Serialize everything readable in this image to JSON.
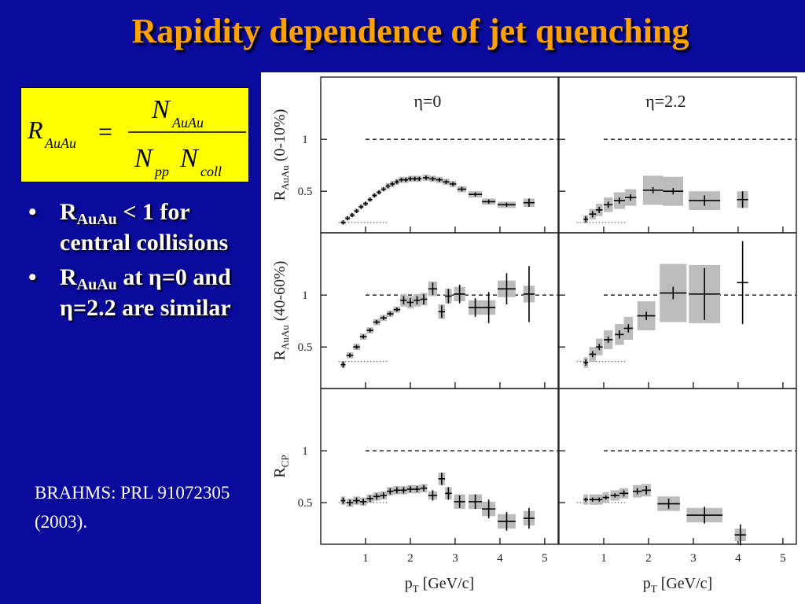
{
  "slide": {
    "title": "Rapidity dependence of jet quenching",
    "formula": {
      "lhs": "R",
      "lhs_sub": "AuAu",
      "equals": "=",
      "num": "N",
      "num_sub": "AuAu",
      "den1": "N",
      "den1_sub": "pp",
      "den2": "N",
      "den2_sub": "coll"
    },
    "bullets": [
      {
        "dot": "•",
        "part1": "R",
        "sub": "AuAu",
        "part2": " < 1 for central collisions"
      },
      {
        "dot": "•",
        "part1": "R",
        "sub": "AuAu",
        "part2": " at η=0 and  η=2.2 are similar"
      }
    ],
    "citation": "BRAHMS: PRL 91072305 (2003)."
  },
  "colors": {
    "background": "#0a0a9c",
    "title": "#ffa200",
    "formula_box": "#ffff00",
    "band": "#bcbcbc"
  },
  "chart_data": {
    "type": "scatter",
    "columns": [
      "η=0",
      "η=2.2"
    ],
    "xlabel": "pT [GeV/c]",
    "xticks": [
      "1",
      "2",
      "3",
      "4",
      "5"
    ],
    "xlim": [
      0,
      5.3
    ],
    "rows": [
      {
        "ylabel": "R",
        "ylabel_sub": "AuAu",
        "ylabel_extra": "(0-10%)",
        "yticks": [
          "1",
          "0.5"
        ],
        "ylim": [
          0.1,
          1.6
        ]
      },
      {
        "ylabel": "R",
        "ylabel_sub": "AuAu",
        "ylabel_extra": "(40-60%)",
        "yticks": [
          "1",
          "0.5"
        ],
        "ylim": [
          0.1,
          1.6
        ]
      },
      {
        "ylabel": "R",
        "ylabel_sub": "CP",
        "ylabel_extra": "",
        "yticks": [
          "1",
          "0.5"
        ],
        "ylim": [
          0.1,
          1.6
        ]
      }
    ],
    "reference_line": 1.0,
    "panels": [
      {
        "row": 0,
        "col": 0,
        "points": [
          {
            "x": 0.5,
            "y": 0.2,
            "band": 0.02,
            "err": 0.02
          },
          {
            "x": 0.6,
            "y": 0.24,
            "band": 0.02,
            "err": 0.02
          },
          {
            "x": 0.7,
            "y": 0.27,
            "band": 0.02,
            "err": 0.02
          },
          {
            "x": 0.8,
            "y": 0.31,
            "band": 0.02,
            "err": 0.02
          },
          {
            "x": 0.9,
            "y": 0.35,
            "band": 0.02,
            "err": 0.02
          },
          {
            "x": 1.0,
            "y": 0.38,
            "band": 0.02,
            "err": 0.02
          },
          {
            "x": 1.1,
            "y": 0.42,
            "band": 0.02,
            "err": 0.02
          },
          {
            "x": 1.2,
            "y": 0.46,
            "band": 0.02,
            "err": 0.02
          },
          {
            "x": 1.3,
            "y": 0.49,
            "band": 0.02,
            "err": 0.02
          },
          {
            "x": 1.4,
            "y": 0.52,
            "band": 0.02,
            "err": 0.02
          },
          {
            "x": 1.5,
            "y": 0.55,
            "band": 0.03,
            "err": 0.02
          },
          {
            "x": 1.6,
            "y": 0.57,
            "band": 0.03,
            "err": 0.02
          },
          {
            "x": 1.7,
            "y": 0.59,
            "band": 0.03,
            "err": 0.02
          },
          {
            "x": 1.8,
            "y": 0.61,
            "band": 0.03,
            "err": 0.02
          },
          {
            "x": 1.9,
            "y": 0.61,
            "band": 0.03,
            "err": 0.02
          },
          {
            "x": 2.0,
            "y": 0.62,
            "band": 0.03,
            "err": 0.02
          },
          {
            "x": 2.1,
            "y": 0.62,
            "band": 0.03,
            "err": 0.02
          },
          {
            "x": 2.2,
            "y": 0.62,
            "band": 0.03,
            "err": 0.02
          },
          {
            "x": 2.35,
            "y": 0.63,
            "band": 0.03,
            "err": 0.02
          },
          {
            "x": 2.5,
            "y": 0.62,
            "band": 0.03,
            "err": 0.02
          },
          {
            "x": 2.65,
            "y": 0.61,
            "band": 0.03,
            "err": 0.02
          },
          {
            "x": 2.8,
            "y": 0.59,
            "band": 0.03,
            "err": 0.02
          },
          {
            "x": 2.95,
            "y": 0.57,
            "band": 0.03,
            "err": 0.02
          },
          {
            "x": 3.15,
            "y": 0.52,
            "band": 0.03,
            "err": 0.02
          },
          {
            "x": 3.45,
            "y": 0.47,
            "band": 0.03,
            "err": 0.02
          },
          {
            "x": 3.75,
            "y": 0.4,
            "band": 0.03,
            "err": 0.02
          },
          {
            "x": 4.15,
            "y": 0.37,
            "band": 0.03,
            "err": 0.02
          },
          {
            "x": 4.65,
            "y": 0.39,
            "band": 0.04,
            "err": 0.04
          }
        ]
      },
      {
        "row": 0,
        "col": 1,
        "points": [
          {
            "x": 0.6,
            "y": 0.23,
            "band": 0.04,
            "err": 0.03
          },
          {
            "x": 0.75,
            "y": 0.28,
            "band": 0.05,
            "err": 0.03
          },
          {
            "x": 0.9,
            "y": 0.32,
            "band": 0.06,
            "err": 0.03
          },
          {
            "x": 1.1,
            "y": 0.37,
            "band": 0.07,
            "err": 0.03
          },
          {
            "x": 1.35,
            "y": 0.41,
            "band": 0.08,
            "err": 0.03
          },
          {
            "x": 1.6,
            "y": 0.44,
            "band": 0.08,
            "err": 0.03
          },
          {
            "x": 2.1,
            "y": 0.51,
            "band": 0.14,
            "err": 0.03
          },
          {
            "x": 2.55,
            "y": 0.5,
            "band": 0.14,
            "err": 0.03
          },
          {
            "x": 3.25,
            "y": 0.41,
            "band": 0.09,
            "err": 0.05
          },
          {
            "x": 4.1,
            "y": 0.42,
            "band": 0.08,
            "err": 0.08
          }
        ]
      },
      {
        "row": 1,
        "col": 0,
        "points": [
          {
            "x": 0.5,
            "y": 0.33,
            "band": 0.03,
            "err": 0.03
          },
          {
            "x": 0.65,
            "y": 0.42,
            "band": 0.03,
            "err": 0.02
          },
          {
            "x": 0.8,
            "y": 0.5,
            "band": 0.03,
            "err": 0.02
          },
          {
            "x": 0.95,
            "y": 0.6,
            "band": 0.03,
            "err": 0.02
          },
          {
            "x": 1.1,
            "y": 0.66,
            "band": 0.03,
            "err": 0.02
          },
          {
            "x": 1.25,
            "y": 0.74,
            "band": 0.03,
            "err": 0.02
          },
          {
            "x": 1.4,
            "y": 0.78,
            "band": 0.03,
            "err": 0.02
          },
          {
            "x": 1.55,
            "y": 0.82,
            "band": 0.03,
            "err": 0.02
          },
          {
            "x": 1.7,
            "y": 0.86,
            "band": 0.03,
            "err": 0.02
          },
          {
            "x": 1.85,
            "y": 0.95,
            "band": 0.06,
            "err": 0.04
          },
          {
            "x": 2.0,
            "y": 0.93,
            "band": 0.06,
            "err": 0.04
          },
          {
            "x": 2.15,
            "y": 0.95,
            "band": 0.06,
            "err": 0.04
          },
          {
            "x": 2.3,
            "y": 0.96,
            "band": 0.06,
            "err": 0.05
          },
          {
            "x": 2.5,
            "y": 1.06,
            "band": 0.07,
            "err": 0.06
          },
          {
            "x": 2.7,
            "y": 0.84,
            "band": 0.07,
            "err": 0.06
          },
          {
            "x": 2.85,
            "y": 0.99,
            "band": 0.07,
            "err": 0.07
          },
          {
            "x": 3.1,
            "y": 1.01,
            "band": 0.07,
            "err": 0.09
          },
          {
            "x": 3.45,
            "y": 0.88,
            "band": 0.07,
            "err": 0.09
          },
          {
            "x": 3.75,
            "y": 0.88,
            "band": 0.07,
            "err": 0.15
          },
          {
            "x": 4.15,
            "y": 1.06,
            "band": 0.08,
            "err": 0.15
          },
          {
            "x": 4.65,
            "y": 1.01,
            "band": 0.08,
            "err": 0.27
          }
        ]
      },
      {
        "row": 1,
        "col": 1,
        "points": [
          {
            "x": 0.6,
            "y": 0.35,
            "band": 0.05,
            "err": 0.03
          },
          {
            "x": 0.75,
            "y": 0.43,
            "band": 0.07,
            "err": 0.03
          },
          {
            "x": 0.9,
            "y": 0.5,
            "band": 0.08,
            "err": 0.03
          },
          {
            "x": 1.1,
            "y": 0.57,
            "band": 0.09,
            "err": 0.03
          },
          {
            "x": 1.35,
            "y": 0.62,
            "band": 0.1,
            "err": 0.04
          },
          {
            "x": 1.55,
            "y": 0.68,
            "band": 0.11,
            "err": 0.04
          },
          {
            "x": 1.95,
            "y": 0.8,
            "band": 0.14,
            "err": 0.04
          },
          {
            "x": 2.55,
            "y": 1.02,
            "band": 0.28,
            "err": 0.06
          },
          {
            "x": 3.25,
            "y": 1.01,
            "band": 0.28,
            "err": 0.25
          },
          {
            "x": 4.1,
            "y": 1.12,
            "band": 0.0,
            "err": 0.4
          }
        ]
      },
      {
        "row": 2,
        "col": 0,
        "points": [
          {
            "x": 0.5,
            "y": 0.52,
            "band": 0.04,
            "err": 0.03
          },
          {
            "x": 0.65,
            "y": 0.5,
            "band": 0.04,
            "err": 0.03
          },
          {
            "x": 0.8,
            "y": 0.52,
            "band": 0.04,
            "err": 0.03
          },
          {
            "x": 0.95,
            "y": 0.51,
            "band": 0.04,
            "err": 0.03
          },
          {
            "x": 1.1,
            "y": 0.54,
            "band": 0.04,
            "err": 0.03
          },
          {
            "x": 1.25,
            "y": 0.56,
            "band": 0.04,
            "err": 0.03
          },
          {
            "x": 1.4,
            "y": 0.57,
            "band": 0.04,
            "err": 0.03
          },
          {
            "x": 1.55,
            "y": 0.61,
            "band": 0.04,
            "err": 0.03
          },
          {
            "x": 1.7,
            "y": 0.62,
            "band": 0.04,
            "err": 0.03
          },
          {
            "x": 1.85,
            "y": 0.62,
            "band": 0.04,
            "err": 0.03
          },
          {
            "x": 2.0,
            "y": 0.63,
            "band": 0.04,
            "err": 0.03
          },
          {
            "x": 2.15,
            "y": 0.63,
            "band": 0.04,
            "err": 0.03
          },
          {
            "x": 2.3,
            "y": 0.64,
            "band": 0.04,
            "err": 0.03
          },
          {
            "x": 2.5,
            "y": 0.57,
            "band": 0.04,
            "err": 0.05
          },
          {
            "x": 2.7,
            "y": 0.73,
            "band": 0.06,
            "err": 0.06
          },
          {
            "x": 2.85,
            "y": 0.59,
            "band": 0.06,
            "err": 0.06
          },
          {
            "x": 3.1,
            "y": 0.51,
            "band": 0.07,
            "err": 0.06
          },
          {
            "x": 3.45,
            "y": 0.51,
            "band": 0.07,
            "err": 0.07
          },
          {
            "x": 3.75,
            "y": 0.44,
            "band": 0.07,
            "err": 0.09
          },
          {
            "x": 4.15,
            "y": 0.32,
            "band": 0.07,
            "err": 0.09
          },
          {
            "x": 4.65,
            "y": 0.35,
            "band": 0.07,
            "err": 0.1
          }
        ]
      },
      {
        "row": 2,
        "col": 1,
        "points": [
          {
            "x": 0.6,
            "y": 0.53,
            "band": 0.05,
            "err": 0.02
          },
          {
            "x": 0.75,
            "y": 0.53,
            "band": 0.05,
            "err": 0.02
          },
          {
            "x": 0.9,
            "y": 0.53,
            "band": 0.05,
            "err": 0.02
          },
          {
            "x": 1.05,
            "y": 0.55,
            "band": 0.05,
            "err": 0.02
          },
          {
            "x": 1.25,
            "y": 0.57,
            "band": 0.05,
            "err": 0.02
          },
          {
            "x": 1.45,
            "y": 0.59,
            "band": 0.05,
            "err": 0.03
          },
          {
            "x": 1.75,
            "y": 0.61,
            "band": 0.06,
            "err": 0.03
          },
          {
            "x": 1.95,
            "y": 0.62,
            "band": 0.06,
            "err": 0.04
          },
          {
            "x": 2.45,
            "y": 0.49,
            "band": 0.07,
            "err": 0.05
          },
          {
            "x": 3.25,
            "y": 0.38,
            "band": 0.07,
            "err": 0.08
          },
          {
            "x": 4.05,
            "y": 0.19,
            "band": 0.06,
            "err": 0.1
          }
        ]
      }
    ]
  }
}
